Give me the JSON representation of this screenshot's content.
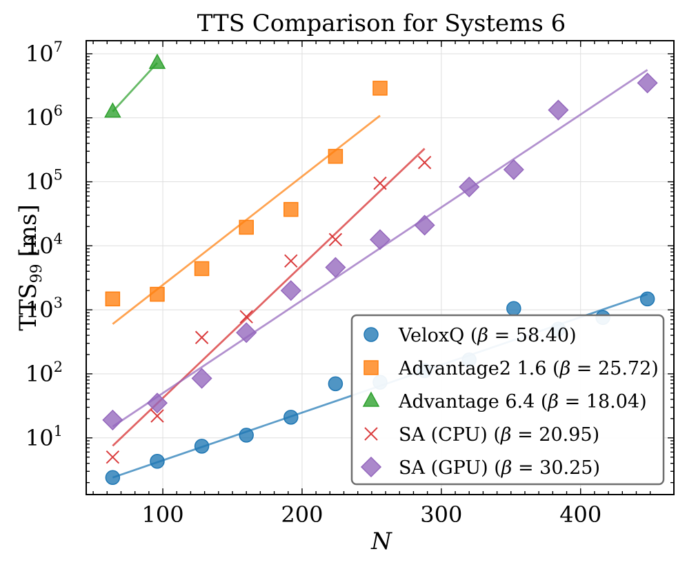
{
  "chart_data": {
    "type": "scatter",
    "title": "TTS Comparison for Systems 6",
    "xlabel": "N",
    "ylabel": "TTS",
    "ylabel_subscript": "99",
    "ylabel_unit": "[ms]",
    "xlim": [
      45,
      467
    ],
    "ylim": [
      1.3,
      16000000.0
    ],
    "yscale": "log",
    "xticks": [
      100,
      200,
      300,
      400
    ],
    "xtick_labels": [
      "100",
      "200",
      "300",
      "400"
    ],
    "yticks": [
      10,
      100,
      1000,
      10000,
      100000,
      1000000,
      10000000
    ],
    "ytick_labels": [
      {
        "base": "10",
        "exp": "1"
      },
      {
        "base": "10",
        "exp": "2"
      },
      {
        "base": "10",
        "exp": "3"
      },
      {
        "base": "10",
        "exp": "4"
      },
      {
        "base": "10",
        "exp": "5"
      },
      {
        "base": "10",
        "exp": "6"
      },
      {
        "base": "10",
        "exp": "7"
      }
    ],
    "grid": true,
    "legend_position": "lower-right",
    "series": [
      {
        "name": "VeloxQ (β = 58.40)",
        "legend_main": "VeloxQ (",
        "legend_symbol": "β",
        "legend_rest": " = 58.40)",
        "marker": "circle",
        "color": "#1f77b4",
        "points": [
          [
            64,
            2.4
          ],
          [
            96,
            4.3
          ],
          [
            128,
            7.4
          ],
          [
            160,
            11
          ],
          [
            192,
            21
          ],
          [
            224,
            70
          ],
          [
            256,
            74
          ],
          [
            288,
            112
          ],
          [
            320,
            165
          ],
          [
            352,
            1050
          ],
          [
            384,
            500
          ],
          [
            416,
            760
          ],
          [
            448,
            1480
          ]
        ],
        "fit": [
          [
            64,
            2.4
          ],
          [
            448,
            1750
          ]
        ]
      },
      {
        "name": "Advantage2 1.6 (β = 25.72)",
        "legend_main": "Advantage2 1.6 (",
        "legend_symbol": "β",
        "legend_rest": " = 25.72)",
        "marker": "square",
        "color": "#ff7f0e",
        "points": [
          [
            64,
            1480
          ],
          [
            96,
            1750
          ],
          [
            128,
            4400
          ],
          [
            160,
            19500
          ],
          [
            192,
            37000
          ],
          [
            224,
            250000
          ],
          [
            256,
            2900000
          ]
        ],
        "fit": [
          [
            64,
            600
          ],
          [
            256,
            1080000
          ]
        ]
      },
      {
        "name": "Advantage 6.4 (β = 18.04)",
        "legend_main": "Advantage 6.4 (",
        "legend_symbol": "β",
        "legend_rest": " = 18.04)",
        "marker": "triangle",
        "color": "#2ca02c",
        "points": [
          [
            64,
            1250000
          ],
          [
            96,
            7200000
          ]
        ],
        "fit": [
          [
            64,
            1250000
          ],
          [
            96,
            7200000
          ]
        ]
      },
      {
        "name": "SA (CPU) (β = 20.95)",
        "legend_main": "SA (CPU) (",
        "legend_symbol": "β",
        "legend_rest": " = 20.95)",
        "marker": "x",
        "color": "#d62728",
        "points": [
          [
            64,
            5
          ],
          [
            96,
            22
          ],
          [
            128,
            370
          ],
          [
            160,
            780
          ],
          [
            192,
            5800
          ],
          [
            224,
            12500
          ],
          [
            256,
            95000
          ],
          [
            288,
            200000
          ]
        ],
        "fit": [
          [
            64,
            7.5
          ],
          [
            288,
            330000
          ]
        ]
      },
      {
        "name": "SA (GPU) (β = 30.25)",
        "legend_main": "SA (GPU) (",
        "legend_symbol": "β",
        "legend_rest": " = 30.25)",
        "marker": "diamond",
        "color": "#9467bd",
        "points": [
          [
            64,
            19
          ],
          [
            96,
            35
          ],
          [
            128,
            85
          ],
          [
            160,
            440
          ],
          [
            192,
            2000
          ],
          [
            224,
            4600
          ],
          [
            256,
            12500
          ],
          [
            288,
            21000
          ],
          [
            320,
            83000
          ],
          [
            352,
            155000
          ],
          [
            384,
            1320000
          ],
          [
            448,
            3500000
          ]
        ],
        "fit": [
          [
            64,
            15
          ],
          [
            448,
            5600000
          ]
        ]
      }
    ]
  }
}
